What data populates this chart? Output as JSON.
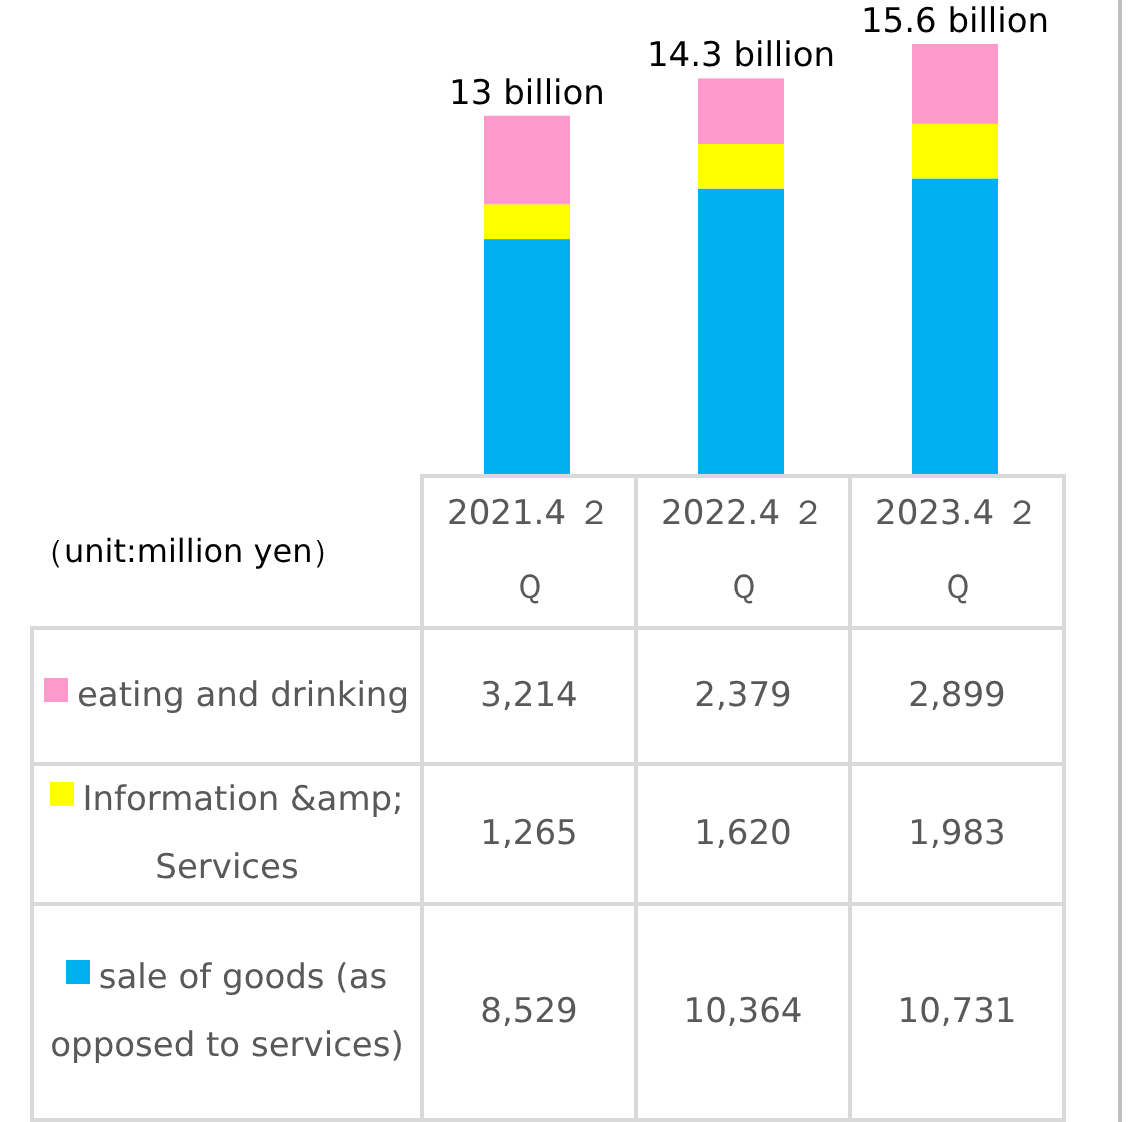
{
  "chart_data": {
    "type": "bar",
    "stacked": true,
    "categories": [
      "2021.4 ２Ｑ",
      "2022.4 ２Ｑ",
      "2023.4 ２Ｑ"
    ],
    "series": [
      {
        "name": "sale of goods (as opposed to services)",
        "color": "#00b0f0",
        "values": [
          8529,
          10364,
          10731
        ],
        "value_labels": [
          "8,529",
          "10,364",
          "10,731"
        ]
      },
      {
        "name": "Information &amp; Services",
        "color": "#ffff00",
        "values": [
          1265,
          1620,
          1983
        ],
        "value_labels": [
          "1,265",
          "1,620",
          "1,983"
        ]
      },
      {
        "name": "eating and drinking",
        "color": "#ff99cc",
        "values": [
          3214,
          2379,
          2899
        ],
        "value_labels": [
          "3,214",
          "2,379",
          "2,899"
        ]
      }
    ],
    "totals": [
      "13 billion",
      "14.3 billion",
      "15.6 billion"
    ],
    "legend": "bottom",
    "annotations": [
      "（unit:million yen）"
    ]
  }
}
